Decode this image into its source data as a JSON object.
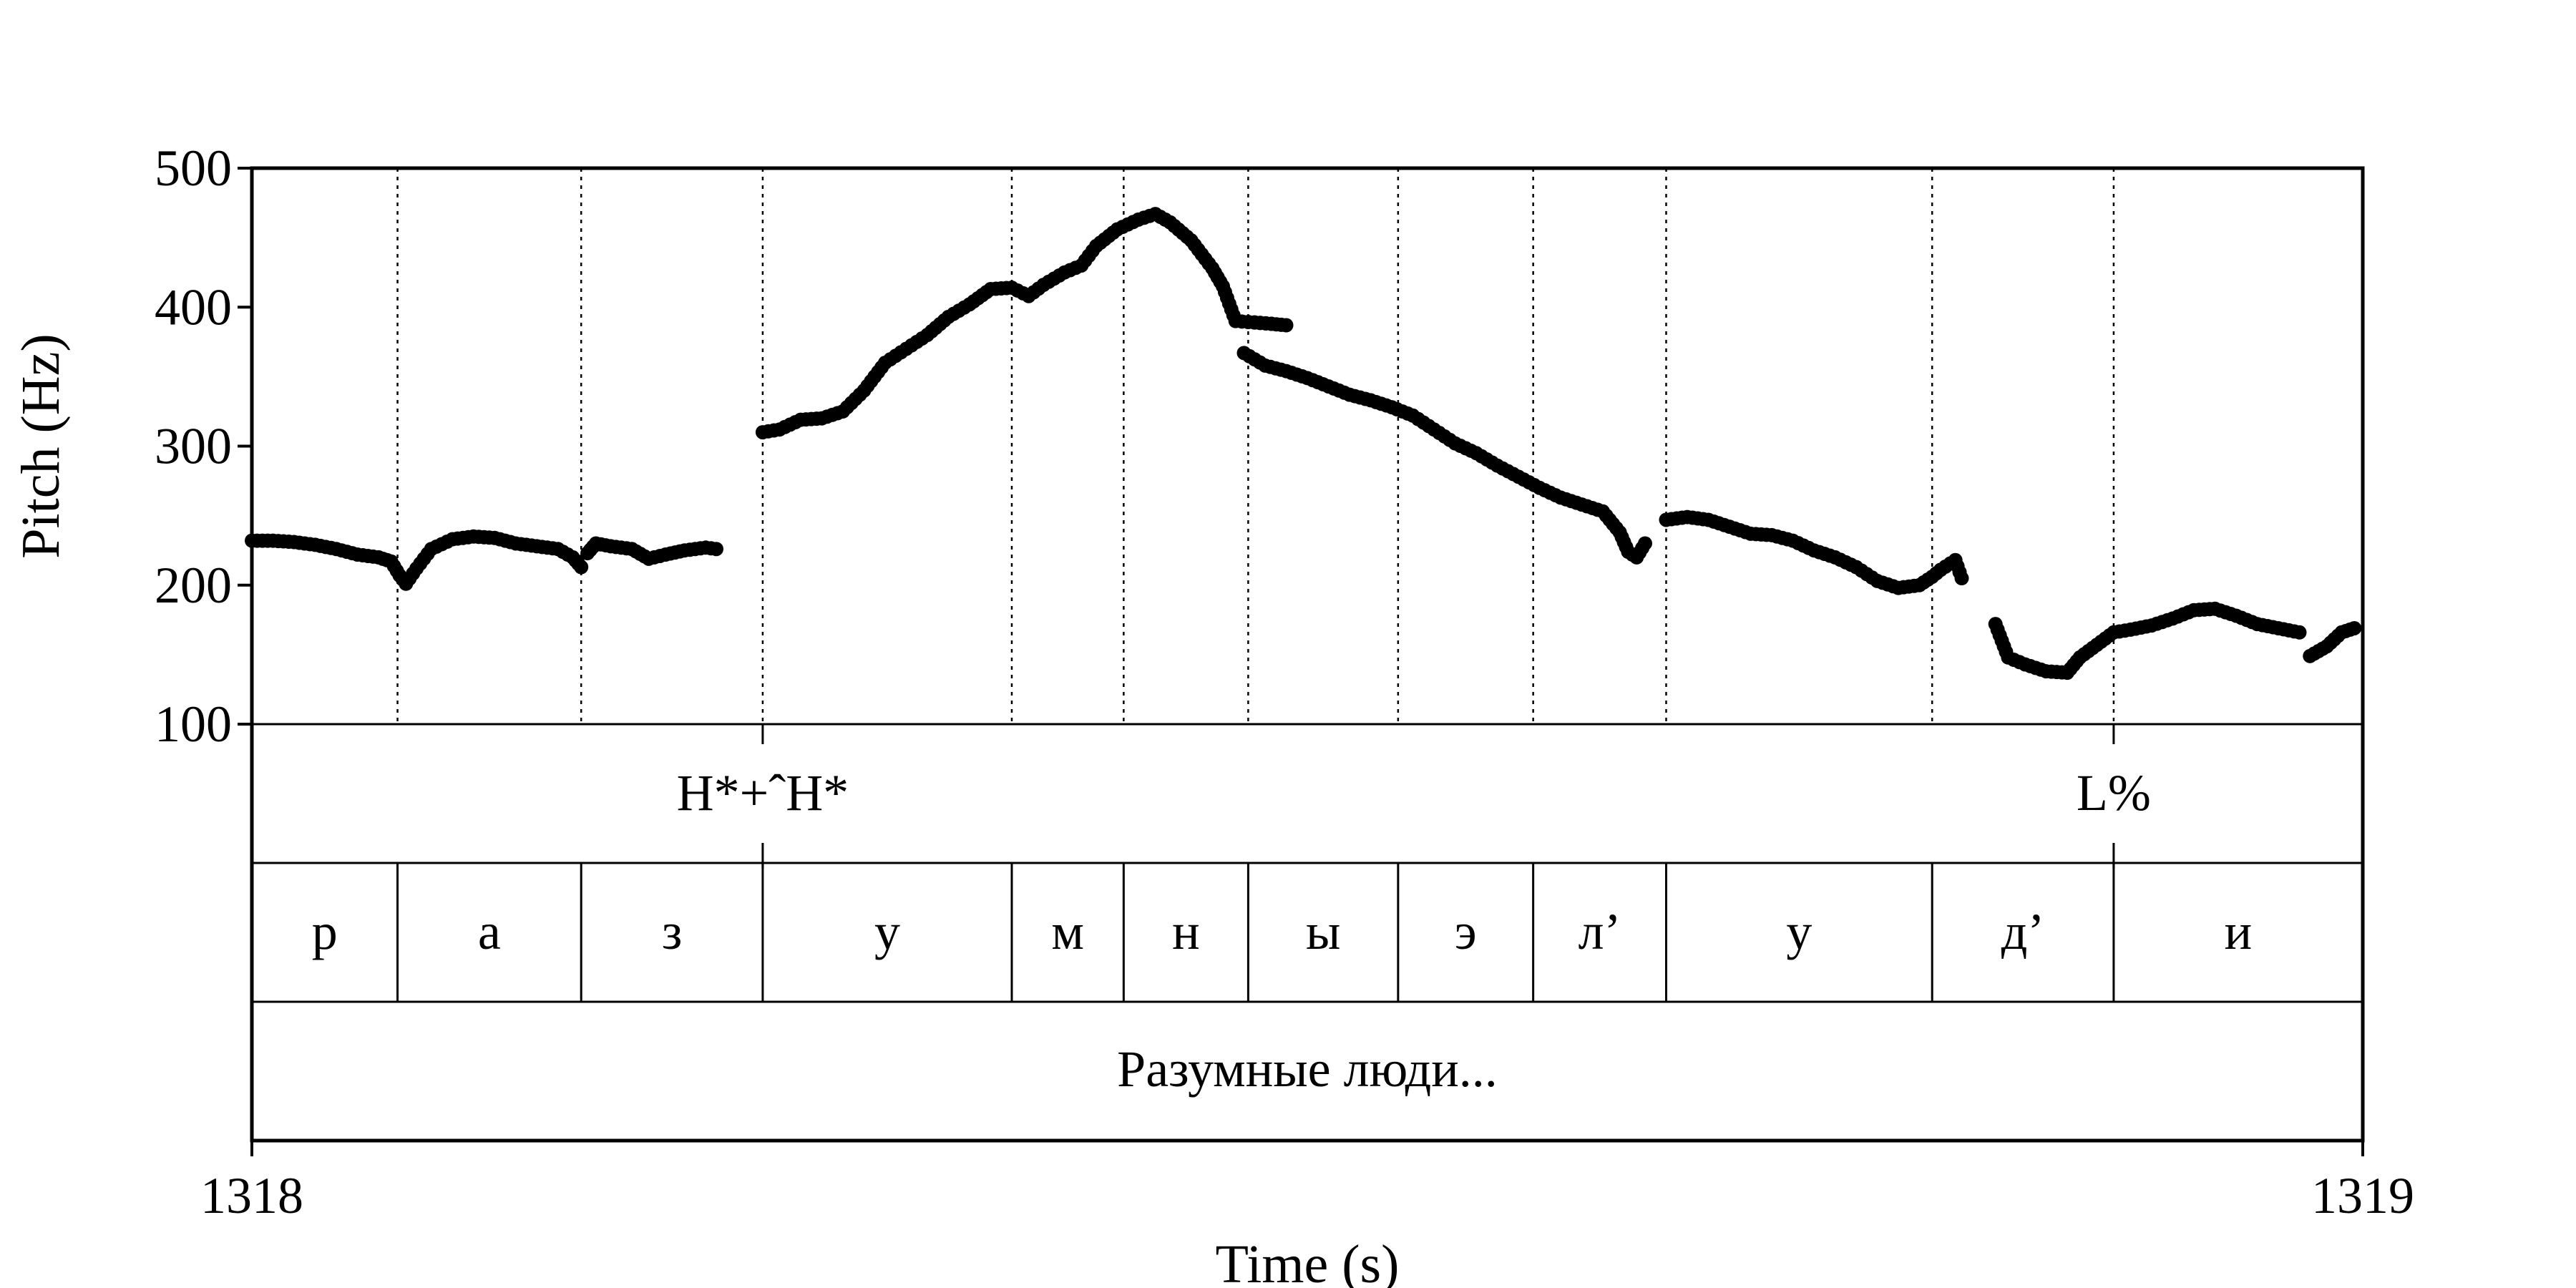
{
  "chart_data": {
    "type": "scatter",
    "xlabel": "Time (s)",
    "ylabel": "Pitch (Hz)",
    "xlim": [
      1318,
      1319
    ],
    "ylim": [
      100,
      500
    ],
    "x_ticks": [
      "1318",
      "1319"
    ],
    "y_ticks": [
      "100",
      "200",
      "300",
      "400",
      "500"
    ],
    "y_tick_values": [
      100,
      200,
      300,
      400,
      500
    ],
    "grid": false,
    "boundaries": [
      1318.069,
      1318.156,
      1318.242,
      1318.36,
      1318.413,
      1318.472,
      1318.543,
      1318.607,
      1318.67,
      1318.796,
      1318.882
    ],
    "tone_tier": {
      "marks": [
        {
          "time": 1318.242,
          "label": "H*+ˆH*"
        },
        {
          "time": 1318.882,
          "label": "L%"
        }
      ]
    },
    "phone_tier": {
      "intervals": [
        {
          "start": 1318.0,
          "end": 1318.069,
          "label": "р"
        },
        {
          "start": 1318.069,
          "end": 1318.156,
          "label": "а"
        },
        {
          "start": 1318.156,
          "end": 1318.242,
          "label": "з"
        },
        {
          "start": 1318.242,
          "end": 1318.36,
          "label": "у"
        },
        {
          "start": 1318.36,
          "end": 1318.413,
          "label": "м"
        },
        {
          "start": 1318.413,
          "end": 1318.472,
          "label": "н"
        },
        {
          "start": 1318.472,
          "end": 1318.543,
          "label": "ы"
        },
        {
          "start": 1318.543,
          "end": 1318.607,
          "label": "э"
        },
        {
          "start": 1318.607,
          "end": 1318.67,
          "label": "л’"
        },
        {
          "start": 1318.67,
          "end": 1318.796,
          "label": "у"
        },
        {
          "start": 1318.796,
          "end": 1318.882,
          "label": "д’"
        },
        {
          "start": 1318.882,
          "end": 1319.0,
          "label": "и"
        }
      ]
    },
    "word_tier": {
      "label": "Разумные люди..."
    },
    "pitch_segments": [
      [
        [
          1318.0,
          232
        ],
        [
          1318.01,
          232
        ],
        [
          1318.02,
          231
        ],
        [
          1318.03,
          229
        ],
        [
          1318.04,
          226
        ],
        [
          1318.05,
          222
        ],
        [
          1318.06,
          220
        ],
        [
          1318.066,
          217
        ],
        [
          1318.07,
          207
        ],
        [
          1318.073,
          201
        ],
        [
          1318.078,
          212
        ],
        [
          1318.085,
          226
        ],
        [
          1318.095,
          233
        ],
        [
          1318.105,
          235
        ],
        [
          1318.115,
          234
        ],
        [
          1318.125,
          230
        ],
        [
          1318.135,
          228
        ],
        [
          1318.145,
          226
        ],
        [
          1318.152,
          220
        ],
        [
          1318.156,
          213
        ]
      ],
      [
        [
          1318.159,
          223
        ],
        [
          1318.163,
          230
        ],
        [
          1318.17,
          228
        ],
        [
          1318.18,
          226
        ],
        [
          1318.188,
          219
        ],
        [
          1318.196,
          222
        ],
        [
          1318.205,
          225
        ],
        [
          1318.215,
          227
        ],
        [
          1318.22,
          226
        ]
      ],
      [
        [
          1318.242,
          310
        ],
        [
          1318.25,
          312
        ],
        [
          1318.26,
          319
        ],
        [
          1318.27,
          320
        ],
        [
          1318.28,
          325
        ],
        [
          1318.29,
          340
        ],
        [
          1318.3,
          360
        ],
        [
          1318.31,
          370
        ],
        [
          1318.32,
          380
        ],
        [
          1318.33,
          393
        ],
        [
          1318.34,
          402
        ],
        [
          1318.35,
          413
        ],
        [
          1318.36,
          414
        ],
        [
          1318.368,
          408
        ],
        [
          1318.375,
          416
        ],
        [
          1318.385,
          425
        ],
        [
          1318.393,
          430
        ],
        [
          1318.4,
          444
        ],
        [
          1318.41,
          456
        ],
        [
          1318.42,
          463
        ],
        [
          1318.428,
          467
        ],
        [
          1318.435,
          461
        ],
        [
          1318.445,
          448
        ],
        [
          1318.455,
          428
        ],
        [
          1318.46,
          415
        ],
        [
          1318.466,
          390
        ],
        [
          1318.475,
          389
        ],
        [
          1318.483,
          388
        ]
      ],
      [
        [
          1318.475,
          389
        ],
        [
          1318.483,
          388
        ],
        [
          1318.49,
          387
        ]
      ],
      [
        [
          1318.47,
          367
        ],
        [
          1318.48,
          358
        ],
        [
          1318.49,
          354
        ],
        [
          1318.5,
          349
        ],
        [
          1318.51,
          343
        ],
        [
          1318.52,
          337
        ],
        [
          1318.53,
          333
        ],
        [
          1318.54,
          328
        ],
        [
          1318.55,
          322
        ],
        [
          1318.56,
          312
        ],
        [
          1318.57,
          302
        ],
        [
          1318.58,
          295
        ],
        [
          1318.59,
          286
        ],
        [
          1318.6,
          278
        ],
        [
          1318.61,
          270
        ],
        [
          1318.62,
          263
        ],
        [
          1318.63,
          258
        ],
        [
          1318.64,
          253
        ],
        [
          1318.648,
          238
        ],
        [
          1318.652,
          224
        ],
        [
          1318.656,
          220
        ],
        [
          1318.66,
          230
        ]
      ],
      [
        [
          1318.67,
          247
        ],
        [
          1318.68,
          249
        ],
        [
          1318.69,
          247
        ],
        [
          1318.7,
          242
        ],
        [
          1318.71,
          237
        ],
        [
          1318.72,
          236
        ],
        [
          1318.73,
          232
        ],
        [
          1318.74,
          225
        ],
        [
          1318.75,
          220
        ],
        [
          1318.76,
          213
        ],
        [
          1318.77,
          203
        ],
        [
          1318.78,
          198
        ],
        [
          1318.79,
          200
        ],
        [
          1318.796,
          206
        ],
        [
          1318.8,
          211
        ],
        [
          1318.807,
          218
        ],
        [
          1318.81,
          205
        ]
      ],
      [
        [
          1318.826,
          172
        ],
        [
          1318.832,
          148
        ],
        [
          1318.84,
          143
        ],
        [
          1318.85,
          138
        ],
        [
          1318.86,
          137
        ],
        [
          1318.866,
          148
        ],
        [
          1318.874,
          157
        ],
        [
          1318.882,
          166
        ],
        [
          1318.89,
          168
        ],
        [
          1318.9,
          171
        ],
        [
          1318.91,
          176
        ],
        [
          1318.92,
          182
        ],
        [
          1318.93,
          183
        ],
        [
          1318.94,
          178
        ],
        [
          1318.95,
          172
        ],
        [
          1318.96,
          169
        ],
        [
          1318.97,
          166
        ]
      ],
      [
        [
          1318.975,
          149
        ],
        [
          1318.983,
          156
        ],
        [
          1318.99,
          166
        ],
        [
          1318.996,
          169
        ]
      ]
    ]
  }
}
